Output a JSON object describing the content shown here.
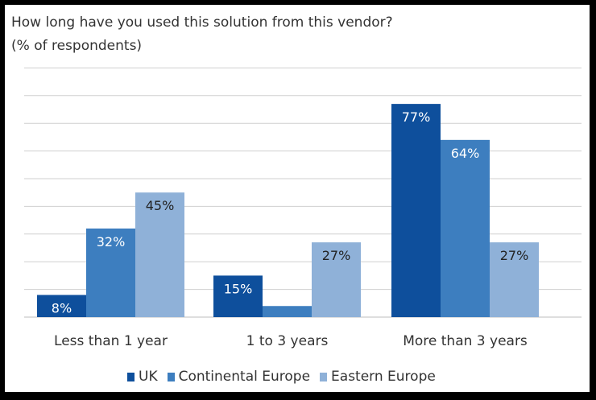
{
  "chart_data": {
    "type": "bar",
    "title": "How long have you used this solution from this vendor?",
    "subtitle": "(% of respondents)",
    "categories": [
      "Less than 1 year",
      "1 to 3 years",
      "More than 3 years"
    ],
    "series": [
      {
        "name": "UK",
        "color": "#0e4f9c",
        "values": [
          8,
          15,
          77
        ],
        "labels": [
          "8%",
          "15%",
          "77%"
        ]
      },
      {
        "name": "Continental Europe",
        "color": "#3d7ebf",
        "values": [
          32,
          4,
          64
        ],
        "labels": [
          "32%",
          "",
          "64%"
        ]
      },
      {
        "name": "Eastern Europe",
        "color": "#8fb1d8",
        "values": [
          45,
          27,
          27
        ],
        "labels": [
          "45%",
          "27%",
          "27%"
        ]
      }
    ],
    "ylim": [
      0,
      90
    ],
    "grid": true,
    "legend": "bottom"
  }
}
